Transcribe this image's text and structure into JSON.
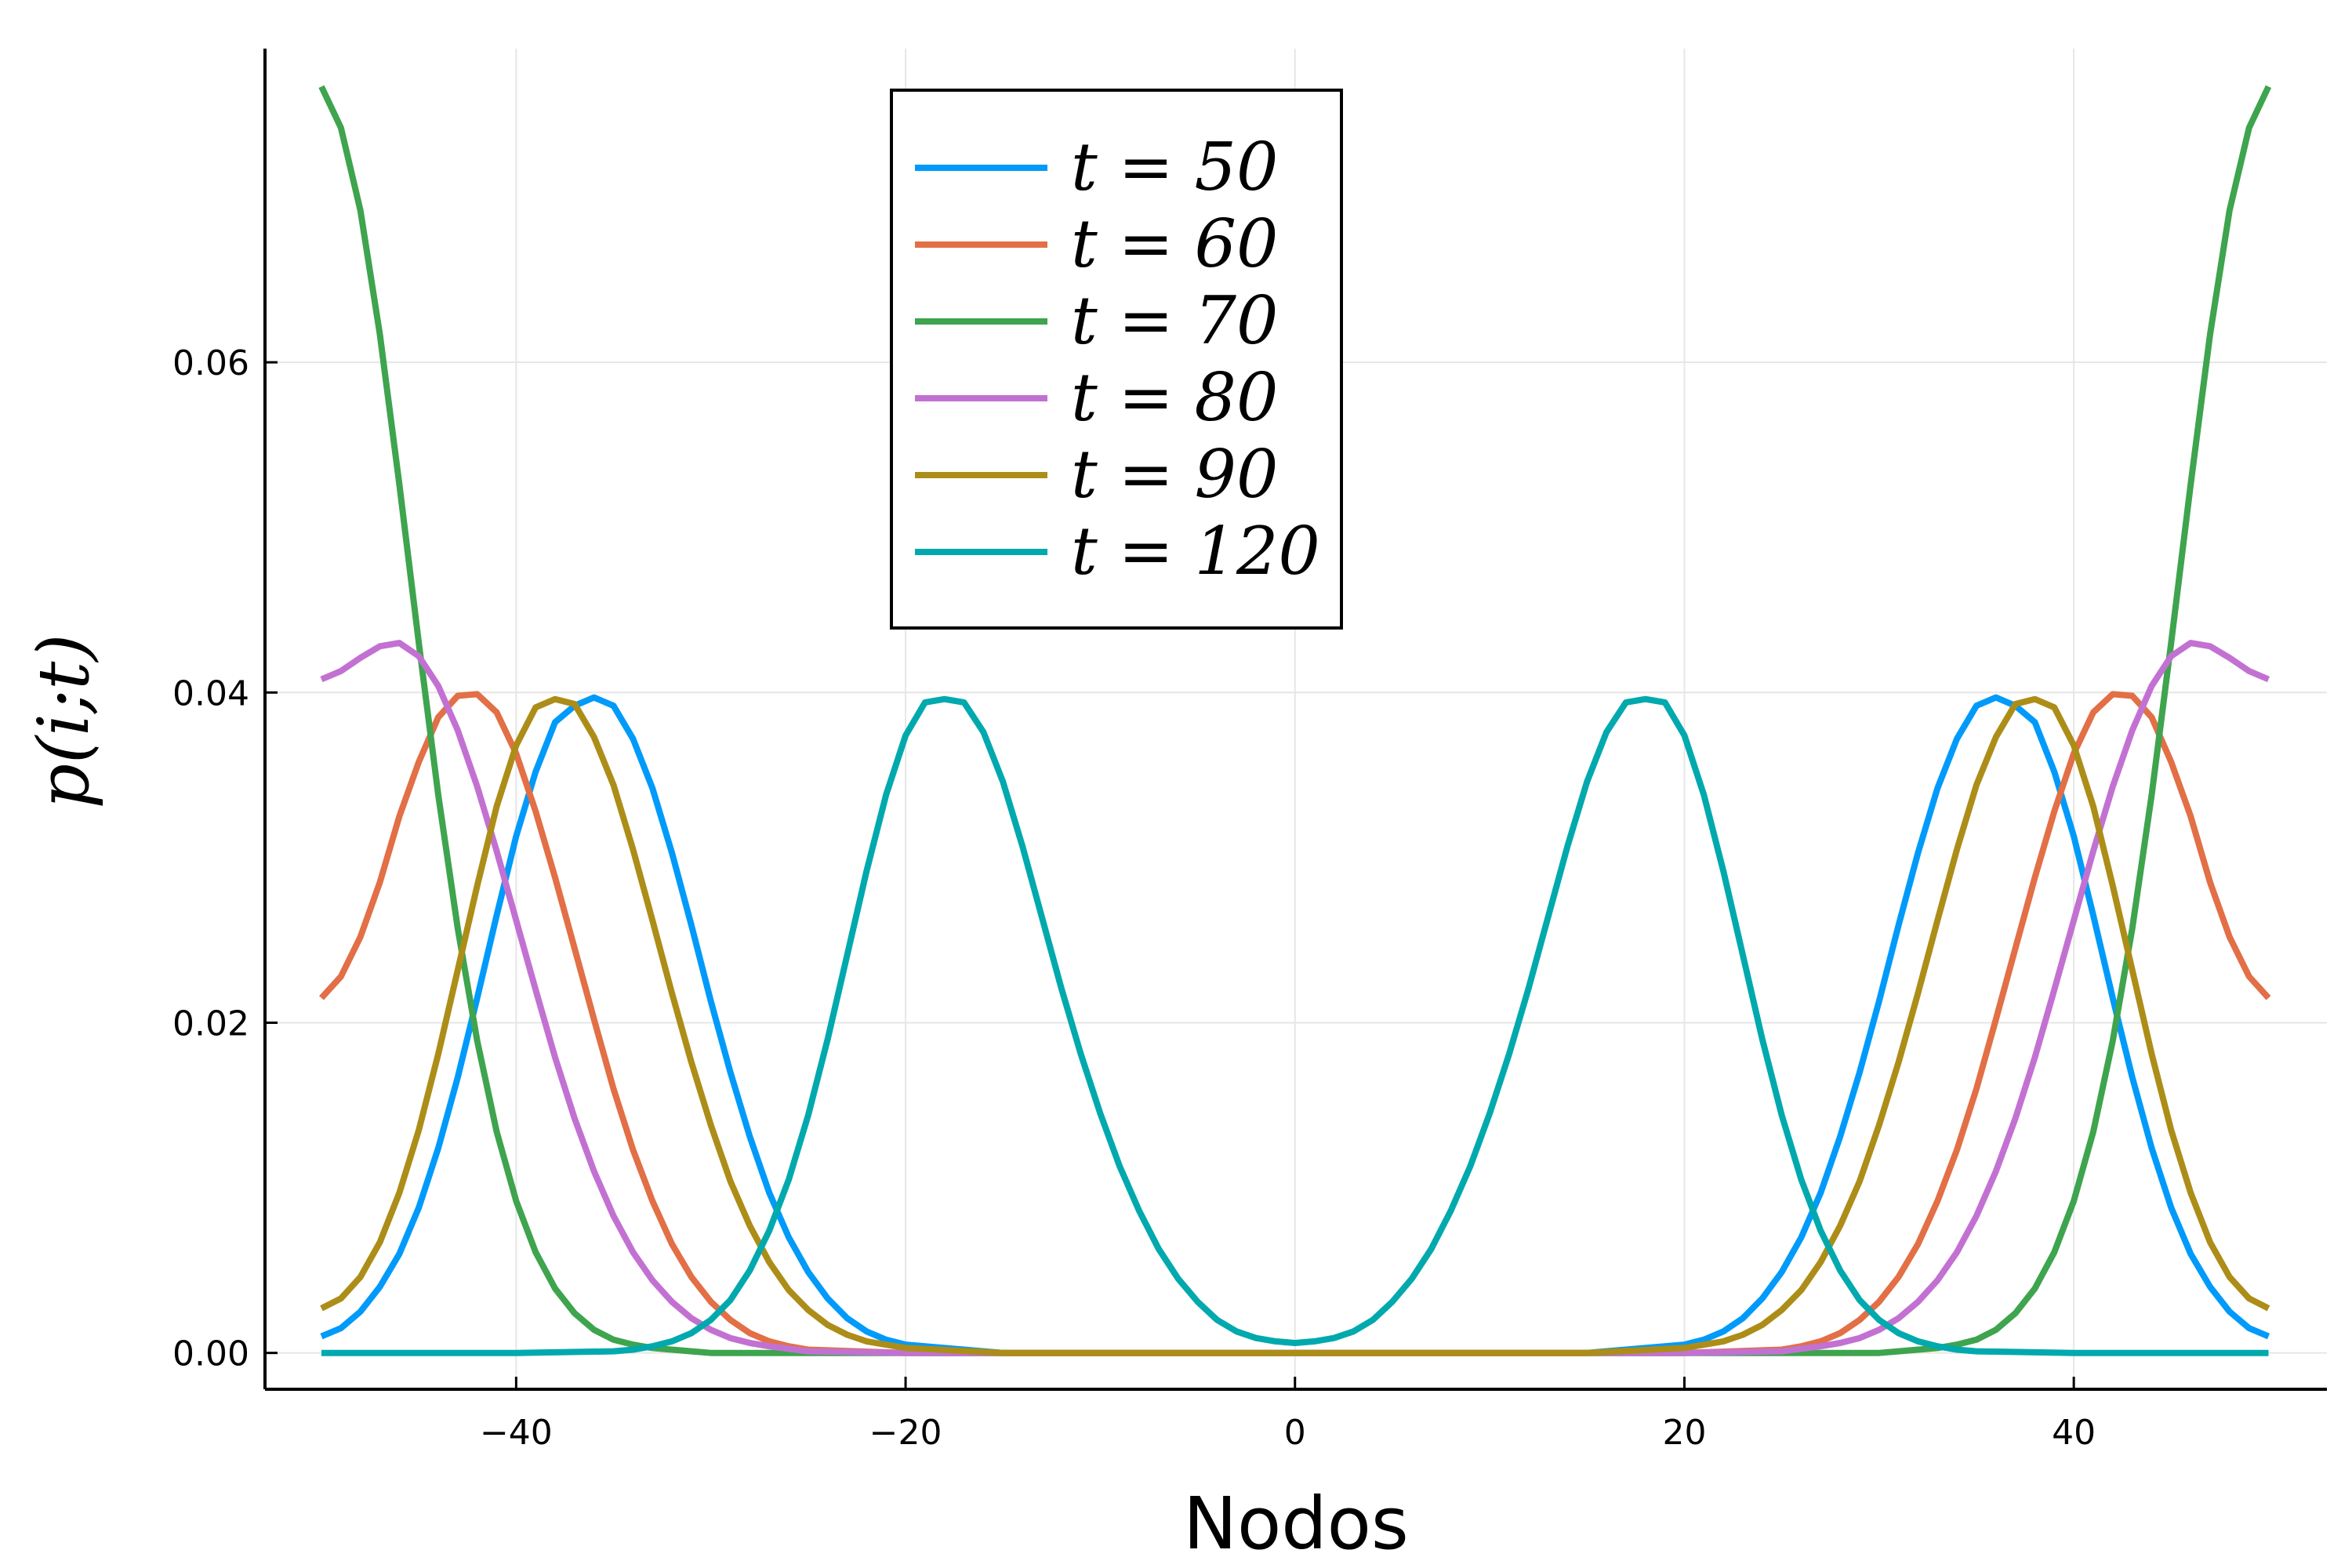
{
  "chart_data": {
    "type": "line",
    "xlabel": "Nodos",
    "ylabel": "p(i;t)",
    "xlim": [
      -52.9,
      53.0
    ],
    "ylim": [
      -0.0022,
      0.079
    ],
    "xticks": [
      -40,
      -20,
      0,
      20,
      40
    ],
    "xtick_labels": [
      "−40",
      "−20",
      "0",
      "20",
      "40"
    ],
    "yticks": [
      0.0,
      0.02,
      0.04,
      0.06
    ],
    "ytick_labels": [
      "0.00",
      "0.02",
      "0.04",
      "0.06"
    ],
    "grid": true,
    "legend_position": "top-center",
    "x_range": [
      -50,
      50
    ],
    "series": [
      {
        "name": "t = 50",
        "color": "#009AFA",
        "x": [
          -50,
          -49,
          -48,
          -47,
          -46,
          -45,
          -44,
          -43,
          -42,
          -41,
          -40,
          -39,
          -38,
          -37,
          -36,
          -35,
          -34,
          -33,
          -32,
          -31,
          -30,
          -29,
          -28,
          -27,
          -26,
          -25,
          -24,
          -23,
          -22,
          -21,
          -20,
          -15,
          -10,
          -5,
          0,
          5,
          10,
          15,
          20,
          21,
          22,
          23,
          24,
          25,
          26,
          27,
          28,
          29,
          30,
          31,
          32,
          33,
          34,
          35,
          36,
          37,
          38,
          39,
          40,
          41,
          42,
          43,
          44,
          45,
          46,
          47,
          48,
          49,
          50
        ],
        "y": [
          0.001,
          0.0015,
          0.0025,
          0.004,
          0.006,
          0.0088,
          0.0124,
          0.0167,
          0.0215,
          0.0265,
          0.0313,
          0.0352,
          0.0382,
          0.0392,
          0.0397,
          0.0392,
          0.0372,
          0.0342,
          0.0303,
          0.0259,
          0.0213,
          0.017,
          0.0131,
          0.0097,
          0.007,
          0.0049,
          0.0033,
          0.0021,
          0.0013,
          0.0008,
          0.0005,
          0.0,
          0.0,
          0.0,
          0.0,
          0.0,
          0.0,
          0.0,
          0.0005,
          0.0008,
          0.0013,
          0.0021,
          0.0033,
          0.0049,
          0.007,
          0.0097,
          0.0131,
          0.017,
          0.0213,
          0.0259,
          0.0303,
          0.0342,
          0.0372,
          0.0392,
          0.0397,
          0.0392,
          0.0382,
          0.0352,
          0.0313,
          0.0265,
          0.0215,
          0.0167,
          0.0124,
          0.0088,
          0.006,
          0.004,
          0.0025,
          0.0015,
          0.001
        ]
      },
      {
        "name": "t = 60",
        "color": "#E26F46",
        "x": [
          -50,
          -49,
          -48,
          -47,
          -46,
          -45,
          -44,
          -43,
          -42,
          -41,
          -40,
          -39,
          -38,
          -37,
          -36,
          -35,
          -34,
          -33,
          -32,
          -31,
          -30,
          -29,
          -28,
          -27,
          -26,
          -25,
          -20,
          -15,
          -10,
          -5,
          0,
          5,
          10,
          15,
          20,
          25,
          26,
          27,
          28,
          29,
          30,
          31,
          32,
          33,
          34,
          35,
          36,
          37,
          38,
          39,
          40,
          41,
          42,
          43,
          44,
          45,
          46,
          47,
          48,
          49,
          50
        ],
        "y": [
          0.0215,
          0.0228,
          0.0252,
          0.0285,
          0.0325,
          0.0358,
          0.0385,
          0.0398,
          0.0399,
          0.0388,
          0.0363,
          0.0328,
          0.0288,
          0.0245,
          0.0202,
          0.016,
          0.0123,
          0.0092,
          0.0066,
          0.0046,
          0.0031,
          0.002,
          0.0012,
          0.0007,
          0.0004,
          0.0002,
          0.0,
          0.0,
          0.0,
          0.0,
          0.0,
          0.0,
          0.0,
          0.0,
          0.0,
          0.0002,
          0.0004,
          0.0007,
          0.0012,
          0.002,
          0.0031,
          0.0046,
          0.0066,
          0.0092,
          0.0123,
          0.016,
          0.0202,
          0.0245,
          0.0288,
          0.0328,
          0.0363,
          0.0388,
          0.0399,
          0.0398,
          0.0385,
          0.0358,
          0.0325,
          0.0285,
          0.0252,
          0.0228,
          0.0215
        ]
      },
      {
        "name": "t = 70",
        "color": "#3EA44E",
        "x": [
          -50,
          -49,
          -48,
          -47,
          -46,
          -45,
          -44,
          -43,
          -42,
          -41,
          -40,
          -39,
          -38,
          -37,
          -36,
          -35,
          -34,
          -33,
          -32,
          -31,
          -30,
          -25,
          -20,
          -10,
          0,
          10,
          20,
          25,
          30,
          31,
          32,
          33,
          34,
          35,
          36,
          37,
          38,
          39,
          40,
          41,
          42,
          43,
          44,
          45,
          46,
          47,
          48,
          49,
          50
        ],
        "y": [
          0.0767,
          0.0742,
          0.0692,
          0.0617,
          0.0526,
          0.043,
          0.0338,
          0.0257,
          0.0189,
          0.0134,
          0.0092,
          0.0061,
          0.0039,
          0.0024,
          0.0014,
          0.0008,
          0.0005,
          0.0003,
          0.0002,
          0.0001,
          0.0,
          0.0,
          0.0,
          0.0,
          0.0,
          0.0,
          0.0,
          0.0,
          0.0,
          0.0001,
          0.0002,
          0.0003,
          0.0005,
          0.0008,
          0.0014,
          0.0024,
          0.0039,
          0.0061,
          0.0092,
          0.0134,
          0.0189,
          0.0257,
          0.0338,
          0.043,
          0.0526,
          0.0617,
          0.0692,
          0.0742,
          0.0767
        ]
      },
      {
        "name": "t = 80",
        "color": "#C271D2",
        "x": [
          -50,
          -49,
          -48,
          -47,
          -46,
          -45,
          -44,
          -43,
          -42,
          -41,
          -40,
          -39,
          -38,
          -37,
          -36,
          -35,
          -34,
          -33,
          -32,
          -31,
          -30,
          -29,
          -28,
          -27,
          -25,
          -20,
          -15,
          -10,
          -5,
          0,
          5,
          10,
          15,
          20,
          25,
          27,
          28,
          29,
          30,
          31,
          32,
          33,
          34,
          35,
          36,
          37,
          38,
          39,
          40,
          41,
          42,
          43,
          44,
          45,
          46,
          47,
          48,
          49,
          50
        ],
        "y": [
          0.0408,
          0.0413,
          0.0421,
          0.0428,
          0.043,
          0.0422,
          0.0404,
          0.0377,
          0.0343,
          0.0304,
          0.0262,
          0.022,
          0.0179,
          0.0142,
          0.011,
          0.0083,
          0.0061,
          0.0044,
          0.0031,
          0.0021,
          0.0014,
          0.0009,
          0.0006,
          0.0004,
          0.0001,
          0.0,
          0.0,
          0.0,
          0.0,
          0.0,
          0.0,
          0.0,
          0.0,
          0.0,
          0.0001,
          0.0004,
          0.0006,
          0.0009,
          0.0014,
          0.0021,
          0.0031,
          0.0044,
          0.0061,
          0.0083,
          0.011,
          0.0142,
          0.0179,
          0.022,
          0.0262,
          0.0304,
          0.0343,
          0.0377,
          0.0404,
          0.0422,
          0.043,
          0.0428,
          0.0421,
          0.0413,
          0.0408
        ]
      },
      {
        "name": "t = 90",
        "color": "#AC8D18",
        "x": [
          -50,
          -49,
          -48,
          -47,
          -46,
          -45,
          -44,
          -43,
          -42,
          -41,
          -40,
          -39,
          -38,
          -37,
          -36,
          -35,
          -34,
          -33,
          -32,
          -31,
          -30,
          -29,
          -28,
          -27,
          -26,
          -25,
          -24,
          -23,
          -22,
          -20,
          -15,
          -10,
          -5,
          0,
          5,
          10,
          15,
          20,
          22,
          23,
          24,
          25,
          26,
          27,
          28,
          29,
          30,
          31,
          32,
          33,
          34,
          35,
          36,
          37,
          38,
          39,
          40,
          41,
          42,
          43,
          44,
          45,
          46,
          47,
          48,
          49,
          50
        ],
        "y": [
          0.0027,
          0.0033,
          0.0046,
          0.0067,
          0.0097,
          0.0135,
          0.0181,
          0.0232,
          0.0283,
          0.0331,
          0.0368,
          0.0391,
          0.0396,
          0.0393,
          0.0373,
          0.0344,
          0.0305,
          0.0262,
          0.0218,
          0.0176,
          0.0138,
          0.0104,
          0.0077,
          0.0055,
          0.0038,
          0.0026,
          0.0017,
          0.0011,
          0.0007,
          0.0003,
          0.0,
          0.0,
          0.0,
          0.0,
          0.0,
          0.0,
          0.0,
          0.0003,
          0.0007,
          0.0011,
          0.0017,
          0.0026,
          0.0038,
          0.0055,
          0.0077,
          0.0104,
          0.0138,
          0.0176,
          0.0218,
          0.0262,
          0.0305,
          0.0344,
          0.0373,
          0.0393,
          0.0396,
          0.0391,
          0.0368,
          0.0331,
          0.0283,
          0.0232,
          0.0181,
          0.0135,
          0.0097,
          0.0067,
          0.0046,
          0.0033,
          0.0027
        ]
      },
      {
        "name": "t = 120",
        "color": "#00A9AD",
        "x": [
          -50,
          -40,
          -35,
          -34,
          -33,
          -32,
          -31,
          -30,
          -29,
          -28,
          -27,
          -26,
          -25,
          -24,
          -23,
          -22,
          -21,
          -20,
          -19,
          -18,
          -17,
          -16,
          -15,
          -14,
          -13,
          -12,
          -11,
          -10,
          -9,
          -8,
          -7,
          -6,
          -5,
          -4,
          -3,
          -2,
          -1,
          0,
          1,
          2,
          3,
          4,
          5,
          6,
          7,
          8,
          9,
          10,
          11,
          12,
          13,
          14,
          15,
          16,
          17,
          18,
          19,
          20,
          21,
          22,
          23,
          24,
          25,
          26,
          27,
          28,
          29,
          30,
          31,
          32,
          33,
          34,
          35,
          40,
          50
        ],
        "y": [
          0.0,
          0.0,
          0.0001,
          0.0002,
          0.0004,
          0.0007,
          0.0012,
          0.002,
          0.0032,
          0.005,
          0.0074,
          0.0105,
          0.0144,
          0.019,
          0.0241,
          0.0292,
          0.0338,
          0.0374,
          0.0394,
          0.0396,
          0.0394,
          0.0376,
          0.0346,
          0.0307,
          0.0264,
          0.0221,
          0.0181,
          0.0145,
          0.0113,
          0.0086,
          0.0063,
          0.0045,
          0.0031,
          0.002,
          0.0013,
          0.0009,
          0.0007,
          0.0006,
          0.0007,
          0.0009,
          0.0013,
          0.002,
          0.0031,
          0.0045,
          0.0063,
          0.0086,
          0.0113,
          0.0145,
          0.0181,
          0.0221,
          0.0264,
          0.0307,
          0.0346,
          0.0376,
          0.0394,
          0.0396,
          0.0394,
          0.0374,
          0.0338,
          0.0292,
          0.0241,
          0.019,
          0.0144,
          0.0105,
          0.0074,
          0.005,
          0.0032,
          0.002,
          0.0012,
          0.0007,
          0.0004,
          0.0002,
          0.0001,
          0.0,
          0.0
        ]
      }
    ]
  }
}
